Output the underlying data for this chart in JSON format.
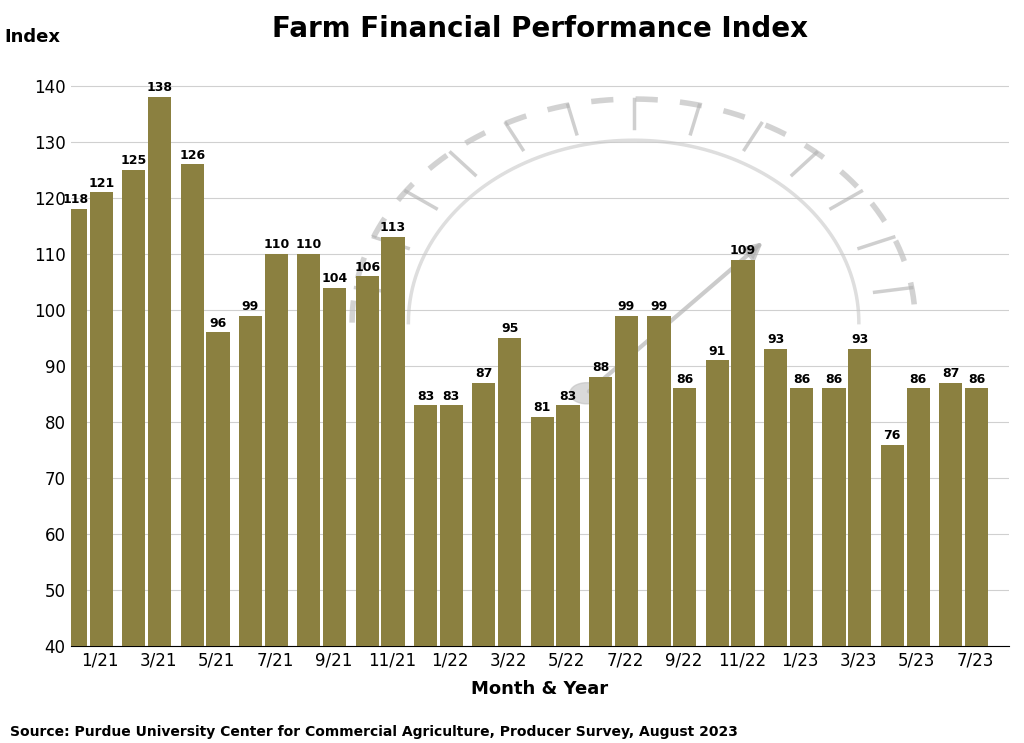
{
  "title": "Farm Financial Performance Index",
  "xlabel": "Month & Year",
  "ylabel": "Index",
  "source": "Source: Purdue University Center for Commercial Agriculture, Producer Survey, August 2023",
  "categories": [
    "1/21",
    "3/21",
    "5/21",
    "7/21",
    "9/21",
    "11/21",
    "1/22",
    "3/22",
    "5/22",
    "7/22",
    "9/22",
    "11/22",
    "1/23",
    "3/23",
    "5/23",
    "7/23"
  ],
  "values": [
    118,
    121,
    125,
    138,
    126,
    96,
    99,
    110,
    110,
    104,
    106,
    113,
    83,
    83,
    87,
    95,
    81,
    83,
    88,
    99,
    99,
    86,
    91,
    109,
    93,
    86,
    86,
    93,
    76,
    86,
    87,
    86
  ],
  "bar_color": "#8B8040",
  "bg_color": "#FFFFFF",
  "ylim": [
    40,
    145
  ],
  "yticks": [
    40,
    50,
    60,
    70,
    80,
    90,
    100,
    110,
    120,
    130,
    140
  ],
  "title_fontsize": 20,
  "label_fontsize": 13,
  "tick_fontsize": 12,
  "bar_label_fontsize": 9,
  "source_fontsize": 10
}
